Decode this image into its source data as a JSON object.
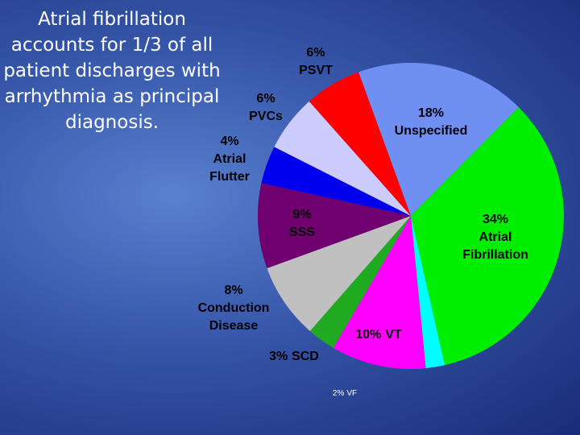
{
  "chart_data": {
    "type": "pie",
    "title": "Atrial fibrillation accounts for 1/3 of all patient discharges with arrhythmia as principal diagnosis.",
    "categories": [
      "Unspecified",
      "Atrial Fibrillation",
      "VF",
      "VT",
      "SCD",
      "Conduction Disease",
      "SSS",
      "Atrial Flutter",
      "PVCs",
      "PSVT"
    ],
    "values": [
      18,
      34,
      2,
      10,
      3,
      8,
      9,
      4,
      6,
      6
    ],
    "value_labels": [
      "18%",
      "34%",
      "2%",
      "10%",
      "3%",
      "8%",
      "9%",
      "4%",
      "6%",
      "6%"
    ],
    "colors": [
      "#6f8ff2",
      "#00ee00",
      "#00ffff",
      "#ff00ff",
      "#1faa1f",
      "#c0c0c0",
      "#700070",
      "#0000ee",
      "#ccccff",
      "#ff0000"
    ]
  }
}
